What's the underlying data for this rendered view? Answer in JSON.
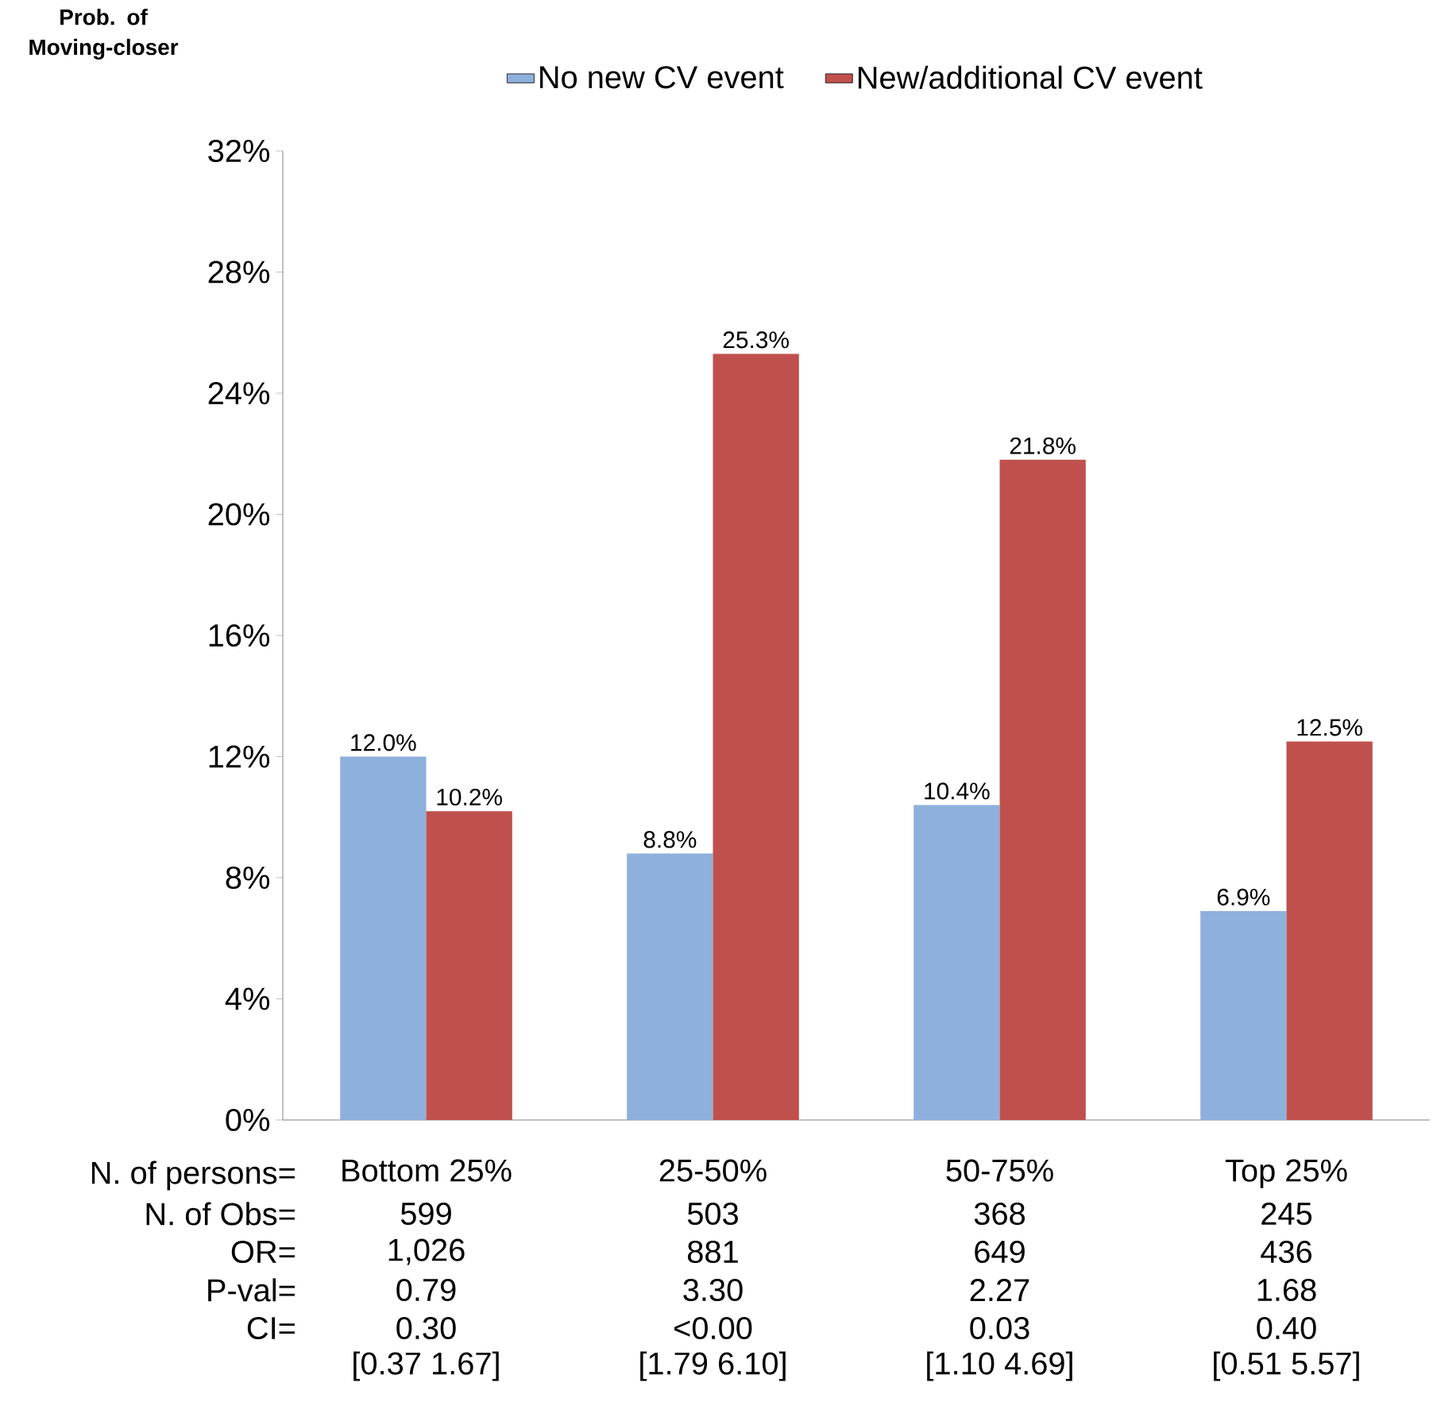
{
  "chart_data": {
    "type": "bar",
    "ylabel": "Prob. of Moving-closer",
    "categories": [
      "Bottom 25%",
      "25-50%",
      "50-75%",
      "Top 25%"
    ],
    "series": [
      {
        "name": "No new CV event",
        "color": "#8eb0dc",
        "values": [
          12.0,
          8.8,
          10.4,
          6.9
        ],
        "value_labels": [
          "12.0%",
          "8.8%",
          "10.4%",
          "6.9%"
        ]
      },
      {
        "name": "New/additional CV event",
        "color": "#c0504d",
        "values": [
          10.2,
          25.3,
          21.8,
          12.5
        ],
        "value_labels": [
          "10.2%",
          "25.3%",
          "21.8%",
          "12.5%"
        ]
      }
    ],
    "ylim": [
      0,
      32
    ],
    "yticks": [
      {
        "value": 0,
        "label": "0%"
      },
      {
        "value": 4,
        "label": "4%"
      },
      {
        "value": 8,
        "label": "8%"
      },
      {
        "value": 12,
        "label": "12%"
      },
      {
        "value": 16,
        "label": "16%"
      },
      {
        "value": 20,
        "label": "20%"
      },
      {
        "value": 24,
        "label": "24%"
      },
      {
        "value": 28,
        "label": "28%"
      },
      {
        "value": 32,
        "label": "32%"
      }
    ],
    "legend": "top",
    "grid": false,
    "annotations": [
      "N. of persons=",
      "N. of Obs=",
      "OR=",
      "P-val=",
      "CI=",
      "599",
      "503",
      "368",
      "245",
      "1,026",
      "881",
      "649",
      "436",
      "0.79",
      "3.30",
      "2.27",
      "1.68",
      "0.30",
      "<0.00",
      "0.03",
      "0.40",
      "[0.37 1.67]",
      "[1.79 6.10]",
      "[1.10 4.69]",
      "[0.51 5.57]"
    ]
  }
}
